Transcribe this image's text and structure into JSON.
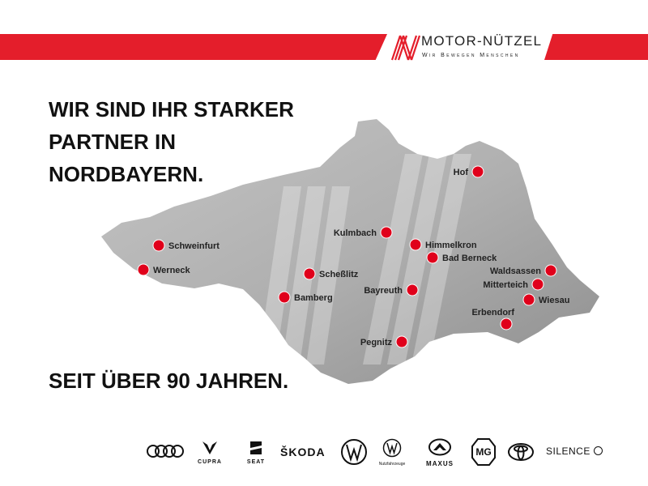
{
  "header": {
    "brand_name": "MOTOR-NÜTZEL",
    "tagline": "Wir Bewegen Menschen",
    "accent": "#e41e2b"
  },
  "headline": "WIR SIND IHR STARKER PARTNER IN NORDBAYERN.",
  "since": "SEIT ÜBER 90 JAHREN.",
  "map": {
    "fill": "#a8a8a8",
    "dot_color": "#e0001b",
    "locations": [
      "Hof",
      "Schweinfurt",
      "Werneck",
      "Kulmbach",
      "Himmelkron",
      "Bad Berneck",
      "Scheßlitz",
      "Waldsassen",
      "Mitterteich",
      "Bayreuth",
      "Wiesau",
      "Bamberg",
      "Erbendorf",
      "Pegnitz"
    ]
  },
  "brands": [
    "Audi",
    "CUPRA",
    "SEAT",
    "ŠKODA",
    "VW",
    "Nutzfahrzeuge",
    "MAXUS",
    "MG",
    "Toyota",
    "SILENCE"
  ]
}
